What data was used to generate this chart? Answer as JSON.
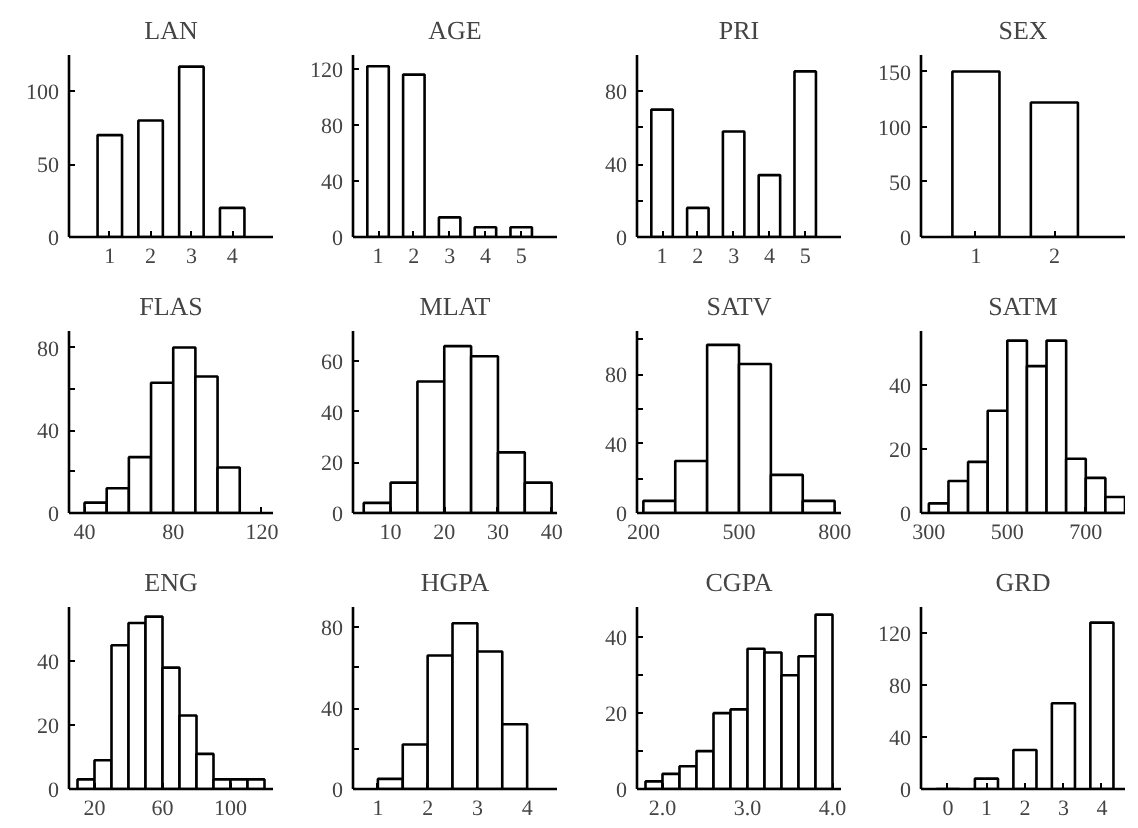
{
  "chart_data": [
    {
      "type": "bar",
      "title": "LAN",
      "x": [
        1,
        2,
        3,
        4
      ],
      "values": [
        70,
        80,
        117,
        20
      ],
      "color": "#ffffff",
      "xlim": [
        0,
        5
      ],
      "xticks": [
        1,
        2,
        3,
        4
      ],
      "ylim": [
        0,
        125
      ],
      "yticks": [
        0,
        50,
        100
      ]
    },
    {
      "type": "bar",
      "title": "AGE",
      "x": [
        1,
        2,
        3,
        4,
        5
      ],
      "values": [
        122,
        116,
        14,
        7,
        7
      ],
      "color": "#ffffff",
      "xlim": [
        0.3,
        6
      ],
      "xticks": [
        1,
        2,
        3,
        4,
        5
      ],
      "ylim": [
        0,
        130
      ],
      "yticks": [
        0,
        40,
        80,
        120
      ]
    },
    {
      "type": "bar",
      "title": "PRI",
      "x": [
        1,
        2,
        3,
        4,
        5
      ],
      "values": [
        70,
        16,
        58,
        34,
        91
      ],
      "color": "#ffffff",
      "xlim": [
        0.3,
        6
      ],
      "xticks": [
        1,
        2,
        3,
        4,
        5
      ],
      "ylim": [
        0,
        100
      ],
      "yticks": [
        0,
        {
          "value": 20,
          "label": null
        },
        40,
        {
          "value": 60,
          "label": null
        },
        80
      ]
    },
    {
      "type": "bar",
      "title": "SEX",
      "x": [
        1,
        2
      ],
      "values": [
        150,
        122
      ],
      "color": "#ffffff",
      "xlim": [
        0.3,
        2.9
      ],
      "xticks": [
        1,
        2
      ],
      "ylim": [
        0,
        165
      ],
      "yticks": [
        0,
        50,
        100,
        150
      ]
    },
    {
      "type": "histogram",
      "title": "FLAS",
      "bins": [
        40,
        50,
        60,
        70,
        80,
        90,
        100,
        110
      ],
      "values": [
        5,
        12,
        27,
        63,
        80,
        66,
        22
      ],
      "color": "#ffffff",
      "xlim": [
        33,
        125
      ],
      "xticks": [
        40,
        80,
        120
      ],
      "ylim": [
        0,
        88
      ],
      "yticks": [
        0,
        {
          "value": 20,
          "label": null
        },
        40,
        {
          "value": 60,
          "label": null
        },
        80
      ]
    },
    {
      "type": "histogram",
      "title": "MLAT",
      "bins": [
        5,
        10,
        15,
        20,
        25,
        30,
        35,
        40
      ],
      "values": [
        4,
        12,
        52,
        66,
        62,
        24,
        12
      ],
      "color": "#ffffff",
      "xlim": [
        3,
        41
      ],
      "xticks": [
        10,
        20,
        30,
        40
      ],
      "ylim": [
        0,
        72
      ],
      "yticks": [
        0,
        20,
        40,
        60
      ]
    },
    {
      "type": "histogram",
      "title": "SATV",
      "bins": [
        200,
        300,
        400,
        500,
        600,
        700,
        800
      ],
      "values": [
        7,
        30,
        97,
        86,
        22,
        7
      ],
      "color": "#ffffff",
      "xlim": [
        180,
        820
      ],
      "xticks": [
        200,
        500,
        800
      ],
      "ylim": [
        0,
        105
      ],
      "yticks": [
        0,
        {
          "value": 20,
          "label": null
        },
        40,
        {
          "value": 60,
          "label": null
        },
        80,
        {
          "value": 100,
          "label": null
        }
      ]
    },
    {
      "type": "histogram",
      "title": "SATM",
      "bins": [
        300,
        350,
        400,
        450,
        500,
        550,
        600,
        650,
        700,
        750,
        800
      ],
      "values": [
        3,
        10,
        16,
        32,
        54,
        46,
        54,
        17,
        11,
        5
      ],
      "color": "#ffffff",
      "xlim": [
        280,
        800
      ],
      "xticks": [
        300,
        500,
        700
      ],
      "ylim": [
        0,
        57
      ],
      "yticks": [
        0,
        20,
        40
      ]
    },
    {
      "type": "histogram",
      "title": "ENG",
      "bins": [
        10,
        20,
        30,
        40,
        50,
        60,
        70,
        80,
        90,
        100,
        110,
        120
      ],
      "values": [
        3,
        9,
        45,
        52,
        54,
        38,
        23,
        11,
        3,
        3,
        3
      ],
      "color": "#ffffff",
      "xlim": [
        5,
        125
      ],
      "xticks": [
        20,
        60,
        100
      ],
      "ylim": [
        0,
        57
      ],
      "yticks": [
        0,
        20,
        40
      ]
    },
    {
      "type": "histogram",
      "title": "HGPA",
      "bins": [
        1.0,
        1.5,
        2.0,
        2.5,
        3.0,
        3.5,
        4.0
      ],
      "values": [
        5,
        22,
        66,
        82,
        68,
        32
      ],
      "color": "#ffffff",
      "xlim": [
        0.5,
        4.6
      ],
      "xticks": [
        1,
        2,
        3,
        4
      ],
      "ylim": [
        0,
        90
      ],
      "yticks": [
        0,
        {
          "value": 20,
          "label": null
        },
        40,
        {
          "value": 60,
          "label": null
        },
        80
      ]
    },
    {
      "type": "histogram",
      "title": "CGPA",
      "bins": [
        1.8,
        2.0,
        2.2,
        2.4,
        2.6,
        2.8,
        3.0,
        3.2,
        3.4,
        3.6,
        3.8,
        4.0
      ],
      "values": [
        2,
        4,
        6,
        10,
        20,
        21,
        37,
        36,
        30,
        35,
        46
      ],
      "color": "#ffffff",
      "xlim": [
        1.7,
        4.1
      ],
      "xticks": [
        {
          "value": 2,
          "label": "2.0"
        },
        {
          "value": 3,
          "label": "3.0"
        },
        {
          "value": 4,
          "label": "4.0"
        }
      ],
      "ylim": [
        0,
        48
      ],
      "yticks": [
        0,
        {
          "value": 10,
          "label": null
        },
        20,
        {
          "value": 30,
          "label": null
        },
        40
      ]
    },
    {
      "type": "bar",
      "title": "GRD",
      "x": [
        0,
        1,
        2,
        3,
        4
      ],
      "values": [
        0,
        8,
        30,
        66,
        128
      ],
      "color": "#ffffff",
      "xlim": [
        -0.7,
        4.6
      ],
      "xticks": [
        0,
        1,
        2,
        3,
        4
      ],
      "ylim": [
        0,
        140
      ],
      "yticks": [
        0,
        40,
        80,
        120
      ]
    }
  ]
}
